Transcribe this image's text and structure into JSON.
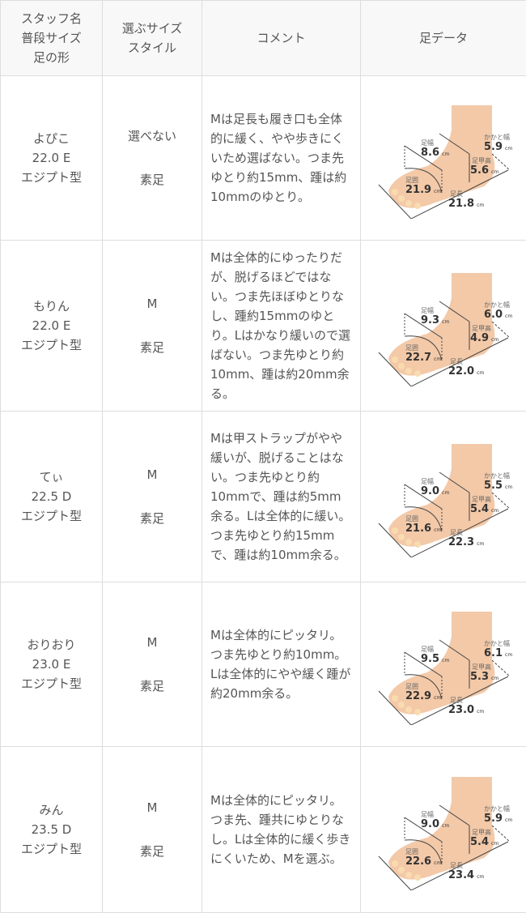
{
  "header": {
    "col1": [
      "スタッフ名",
      "普段サイズ",
      "足の形"
    ],
    "col2": [
      "選ぶサイズ",
      "スタイル"
    ],
    "col3": "コメント",
    "col4": "足データ"
  },
  "labels": {
    "width": "足幅",
    "heel": "かかと幅",
    "instep": "足甲高",
    "girth": "足囲",
    "length": "足長",
    "unit": "cm"
  },
  "rows": [
    {
      "name": "よぴこ",
      "size": "22.0 E",
      "shape": "エジプト型",
      "choice": "選べない",
      "style": "素足",
      "comment": "Mは足長も履き口も全体的に緩く、やや歩きにくいため選ばない。つま先ゆとり約15mm、踵は約10mmのゆとり。",
      "foot": {
        "width": "8.6",
        "heel": "5.9",
        "instep": "5.6",
        "girth": "21.9",
        "length": "21.8"
      }
    },
    {
      "name": "もりん",
      "size": "22.0 E",
      "shape": "エジプト型",
      "choice": "M",
      "style": "素足",
      "comment": "Mは全体的にゆったりだが、脱げるほどではない。つま先ほぼゆとりなし、踵約15mmのゆとり。Lはかなり緩いので選ばない。つま先ゆとり約10mm、踵は約20mm余る。",
      "foot": {
        "width": "9.3",
        "heel": "6.0",
        "instep": "4.9",
        "girth": "22.7",
        "length": "22.0"
      }
    },
    {
      "name": "てぃ",
      "size": "22.5 D",
      "shape": "エジプト型",
      "choice": "M",
      "style": "素足",
      "comment": "Mは甲ストラップがやや緩いが、脱げることはない。つま先ゆとり約10mmで、踵は約5mm余る。Lは全体的に緩い。つま先ゆとり約15mmで、踵は約10mm余る。",
      "foot": {
        "width": "9.0",
        "heel": "5.5",
        "instep": "5.4",
        "girth": "21.6",
        "length": "22.3"
      }
    },
    {
      "name": "おりおり",
      "size": "23.0 E",
      "shape": "エジプト型",
      "choice": "M",
      "style": "素足",
      "comment": "Mは全体的にピッタリ。つま先ゆとり約10mm。Lは全体的にやや緩く踵が約20mm余る。",
      "foot": {
        "width": "9.5",
        "heel": "6.1",
        "instep": "5.3",
        "girth": "22.9",
        "length": "23.0"
      }
    },
    {
      "name": "みん",
      "size": "23.5 D",
      "shape": "エジプト型",
      "choice": "M",
      "style": "素足",
      "comment": "Mは全体的にピッタリ。つま先、踵共にゆとりなし。Lは全体的に緩く歩きにくいため、Mを選ぶ。",
      "foot": {
        "width": "9.0",
        "heel": "5.9",
        "instep": "5.4",
        "girth": "22.6",
        "length": "23.4"
      }
    }
  ]
}
